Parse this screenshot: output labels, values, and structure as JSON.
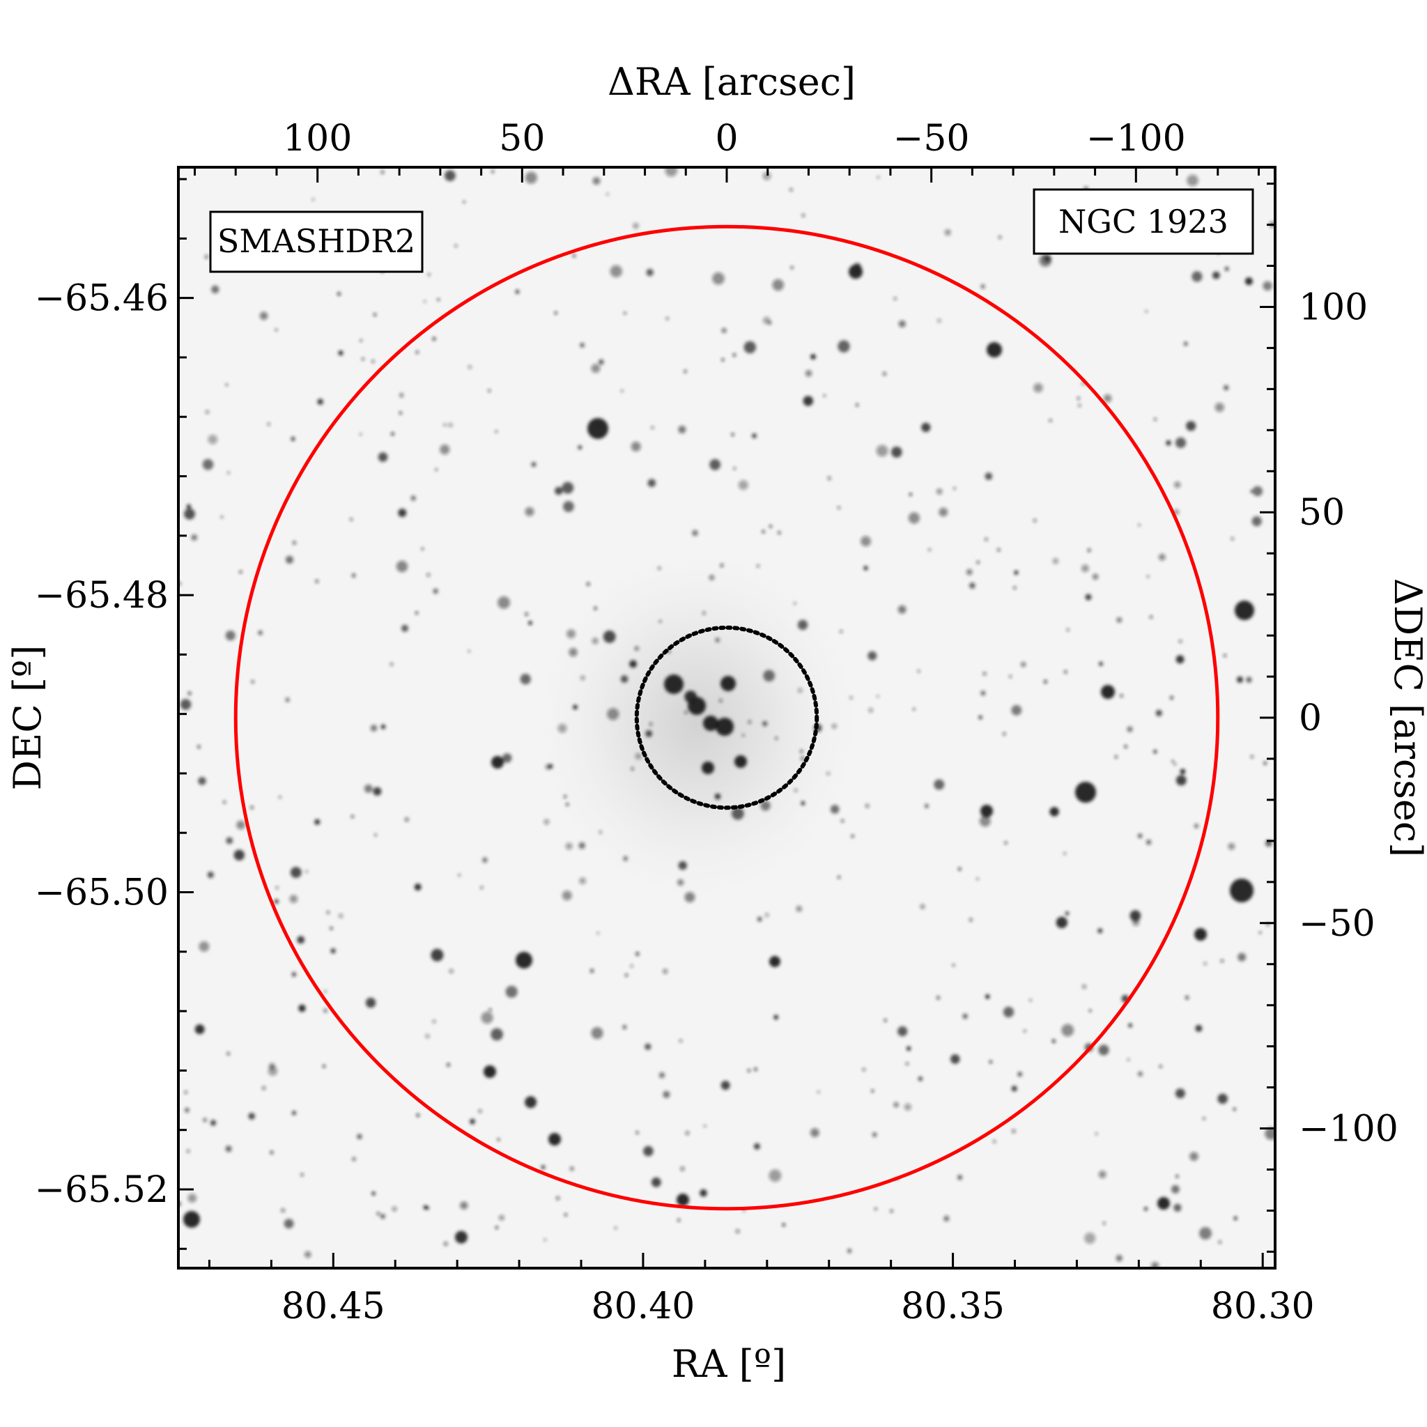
{
  "figure": {
    "top_axis_title": "ΔRA [arcsec]",
    "bottom_axis_title": "RA [º]",
    "left_axis_title": "DEC [º]",
    "right_axis_title": "ΔDEC [arcsec]",
    "survey_label": "SMASHDR2",
    "survey_label_color": "#ff0000",
    "object_label": "NGC 1923",
    "outer_circle_color": "#ff0000",
    "inner_circle_style": "dotted",
    "inner_circle_color": "#000000",
    "background": "grayscale star field"
  },
  "chart_data": {
    "type": "scatter",
    "ra_axis": {
      "ticks": [
        80.45,
        80.4,
        80.35,
        80.3
      ],
      "tick_labels": [
        "80.45",
        "80.40",
        "80.35",
        "80.30"
      ],
      "range": [
        80.475,
        80.298
      ]
    },
    "dec_axis": {
      "ticks": [
        -65.46,
        -65.48,
        -65.5,
        -65.52
      ],
      "tick_labels": [
        "−65.46",
        "−65.48",
        "−65.50",
        "−65.52"
      ],
      "range": [
        -65.5253,
        -65.4512
      ]
    },
    "dra_axis": {
      "ticks": [
        100,
        50,
        0,
        -50,
        -100
      ],
      "tick_labels": [
        "100",
        "50",
        "0",
        "−50",
        "−100"
      ],
      "range": [
        134,
        -134
      ]
    },
    "ddec_axis": {
      "ticks": [
        100,
        50,
        0,
        -50,
        -100
      ],
      "tick_labels": [
        "100",
        "50",
        "0",
        "−50",
        "−100"
      ],
      "range": [
        -134,
        134
      ]
    },
    "center": {
      "ra": 80.3871,
      "dec": -65.4877
    },
    "outer_radius_arcsec": 120,
    "inner_radius_arcsec": 22
  }
}
